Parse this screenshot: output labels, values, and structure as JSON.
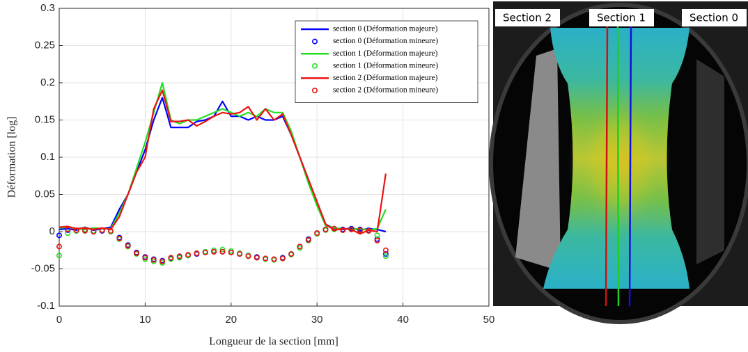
{
  "chart_data": {
    "type": "line",
    "xlabel": "Longueur de la section [mm]",
    "ylabel": "Déformation [log]",
    "x": [
      0,
      1,
      2,
      3,
      4,
      5,
      6,
      7,
      8,
      9,
      10,
      11,
      12,
      13,
      14,
      15,
      16,
      17,
      18,
      19,
      20,
      21,
      22,
      23,
      24,
      25,
      26,
      27,
      28,
      29,
      30,
      31,
      32,
      33,
      34,
      35,
      36,
      37,
      38
    ],
    "series": [
      {
        "name": "section 0 (Déformation majeure)",
        "mode": "line",
        "color": "#0000ff",
        "values": [
          0.003,
          0.004,
          0.002,
          0.006,
          0.002,
          0.004,
          0.006,
          0.03,
          0.05,
          0.08,
          0.11,
          0.15,
          0.18,
          0.14,
          0.14,
          0.14,
          0.148,
          0.15,
          0.155,
          0.175,
          0.155,
          0.155,
          0.15,
          0.155,
          0.15,
          0.15,
          0.155,
          0.13,
          0.1,
          0.07,
          0.04,
          0.01,
          0.004,
          0.003,
          0.005,
          0.002,
          0.004,
          0.003,
          0.0
        ]
      },
      {
        "name": "section 0 (Déformation mineure)",
        "mode": "markers",
        "color": "#0000ff",
        "values": [
          -0.005,
          0.002,
          0.001,
          0.002,
          0.0,
          0.001,
          0.0,
          -0.008,
          -0.018,
          -0.028,
          -0.034,
          -0.037,
          -0.039,
          -0.036,
          -0.034,
          -0.032,
          -0.03,
          -0.028,
          -0.027,
          -0.027,
          -0.028,
          -0.03,
          -0.032,
          -0.034,
          -0.036,
          -0.037,
          -0.035,
          -0.03,
          -0.02,
          -0.01,
          -0.002,
          0.003,
          0.004,
          0.003,
          0.004,
          0.003,
          0.002,
          -0.01,
          -0.03
        ]
      },
      {
        "name": "section 1 (Déformation majeure)",
        "mode": "line",
        "color": "#22e022",
        "values": [
          0.005,
          0.006,
          0.004,
          0.003,
          0.005,
          0.004,
          0.004,
          0.025,
          0.05,
          0.085,
          0.12,
          0.16,
          0.2,
          0.15,
          0.145,
          0.15,
          0.15,
          0.155,
          0.16,
          0.165,
          0.16,
          0.155,
          0.16,
          0.155,
          0.165,
          0.16,
          0.16,
          0.135,
          0.1,
          0.065,
          0.035,
          0.008,
          0.005,
          0.004,
          0.003,
          0.004,
          0.002,
          0.004,
          0.03
        ]
      },
      {
        "name": "section 1 (Déformation mineure)",
        "mode": "markers",
        "color": "#22e022",
        "values": [
          -0.032,
          -0.002,
          0.001,
          0.003,
          0.001,
          0.002,
          0.0,
          -0.01,
          -0.02,
          -0.03,
          -0.037,
          -0.04,
          -0.042,
          -0.037,
          -0.035,
          -0.032,
          -0.029,
          -0.027,
          -0.025,
          -0.024,
          -0.026,
          -0.029,
          -0.032,
          -0.035,
          -0.037,
          -0.038,
          -0.036,
          -0.031,
          -0.022,
          -0.012,
          -0.003,
          0.002,
          0.003,
          0.002,
          0.003,
          0.001,
          0.001,
          -0.005,
          -0.033
        ]
      },
      {
        "name": "section 2 (Déformation majeure)",
        "mode": "line",
        "color": "#ee1111",
        "values": [
          0.006,
          0.007,
          0.004,
          0.005,
          0.003,
          0.005,
          0.003,
          0.02,
          0.05,
          0.08,
          0.1,
          0.165,
          0.19,
          0.148,
          0.148,
          0.15,
          0.142,
          0.148,
          0.155,
          0.16,
          0.158,
          0.16,
          0.168,
          0.15,
          0.165,
          0.15,
          0.158,
          0.13,
          0.1,
          0.07,
          0.04,
          0.01,
          0.002,
          0.004,
          0.003,
          -0.003,
          0.002,
          0.0,
          0.078
        ]
      },
      {
        "name": "section 2 (Déformation mineure)",
        "mode": "markers",
        "color": "#ee1111",
        "values": [
          -0.02,
          0.003,
          0.002,
          0.001,
          0.0,
          0.002,
          0.001,
          -0.009,
          -0.019,
          -0.029,
          -0.035,
          -0.038,
          -0.04,
          -0.035,
          -0.033,
          -0.031,
          -0.029,
          -0.028,
          -0.027,
          -0.027,
          -0.028,
          -0.03,
          -0.033,
          -0.035,
          -0.036,
          -0.037,
          -0.036,
          -0.03,
          -0.02,
          -0.011,
          -0.002,
          0.003,
          0.004,
          0.002,
          0.003,
          0.002,
          0.001,
          -0.012,
          -0.025
        ]
      }
    ],
    "xlim": [
      0,
      50
    ],
    "xticks": [
      0,
      10,
      20,
      30,
      40,
      50
    ],
    "ylim": [
      -0.1,
      0.3
    ],
    "yticks": [
      -0.1,
      -0.05,
      0,
      0.05,
      0.1,
      0.15,
      0.2,
      0.25,
      0.3
    ],
    "grid": true,
    "legend": "upper right"
  },
  "image": {
    "labels": [
      "Section 2",
      "Section 1",
      "Section 0"
    ]
  }
}
